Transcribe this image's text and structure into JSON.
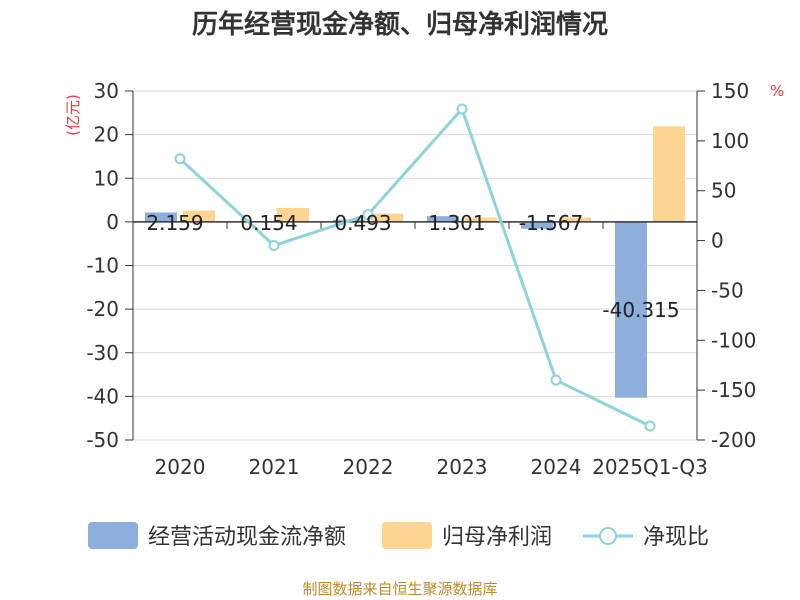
{
  "title": "历年经营现金净额、归母净利润情况",
  "source": "制图数据来自恒生聚源数据库",
  "colors": {
    "cash_flow": "#8eaedc",
    "net_profit": "#fdd592",
    "ratio": "#8dd3d8",
    "unit": "#e8383c",
    "source": "#c08a2c"
  },
  "chart_data": {
    "type": "bar+line",
    "title": "历年经营现金净额、归母净利润情况",
    "categories": [
      "2020",
      "2021",
      "2022",
      "2023",
      "2024",
      "2025Q1-Q3"
    ],
    "left_axis": {
      "unit": "(亿元)",
      "min": -50,
      "max": 30,
      "step": 10,
      "ticks": [
        "30",
        "20",
        "10",
        "0",
        "-10",
        "-20",
        "-30",
        "-40",
        "-50"
      ]
    },
    "right_axis": {
      "unit": "%",
      "min": -200,
      "max": 150,
      "step": 50,
      "ticks": [
        "150",
        "100",
        "50",
        "0",
        "-50",
        "-100",
        "-150",
        "-200"
      ]
    },
    "series": [
      {
        "name": "经营活动现金流净额",
        "type": "bar",
        "axis": "left",
        "values": [
          2.159,
          0.154,
          0.493,
          1.301,
          -1.567,
          -40.315
        ],
        "labels": [
          "2.159",
          "0.154",
          "0.493",
          "1.301",
          "-1.567",
          "-40.315"
        ]
      },
      {
        "name": "归母净利润",
        "type": "bar",
        "axis": "left",
        "values": [
          2.6,
          3.2,
          1.9,
          1.0,
          1.0,
          21.9
        ]
      },
      {
        "name": "净现比",
        "type": "line",
        "axis": "right",
        "values": [
          82,
          -5,
          26,
          132,
          -140,
          -186
        ]
      }
    ],
    "legend": [
      "经营活动现金流净额",
      "归母净利润",
      "净现比"
    ],
    "legend_position": "bottom"
  }
}
